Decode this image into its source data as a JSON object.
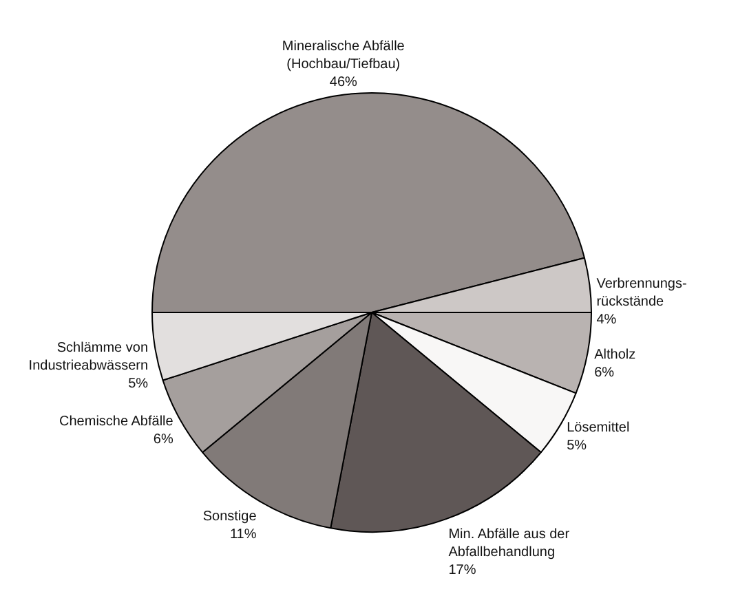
{
  "chart_data": {
    "type": "pie",
    "categories": [
      "Mineralische Abfälle (Hochbau/Tiefbau)",
      "Verbrennungs-rückstände",
      "Altholz",
      "Lösemittel",
      "Min. Abfälle aus der Abfallbehandlung",
      "Sonstige",
      "Chemische Abfälle",
      "Schlämme von Industrieabwässern"
    ],
    "values": [
      46,
      4,
      6,
      5,
      17,
      11,
      6,
      5
    ],
    "colors": [
      "#948d8b",
      "#cdc8c6",
      "#b9b3b1",
      "#f8f7f6",
      "#5f5756",
      "#817a78",
      "#a59f9d",
      "#e2dfde"
    ],
    "value_labels": [
      "46%",
      "4%",
      "6%",
      "5%",
      "17%",
      "11%",
      "6%",
      "5%"
    ],
    "legend": false
  }
}
